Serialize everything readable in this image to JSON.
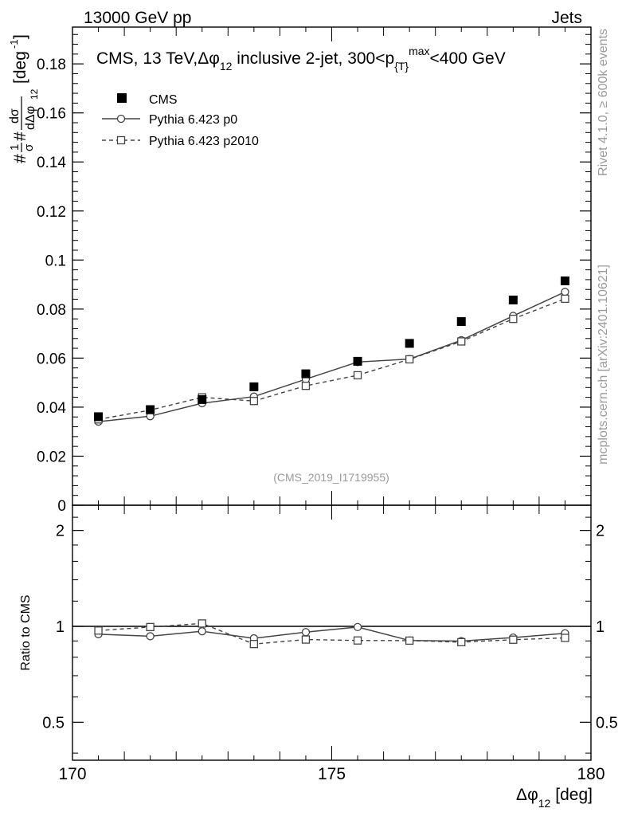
{
  "header": {
    "left": "13000 GeV pp",
    "right": "Jets"
  },
  "side": {
    "top": "Rivet 4.1.0, ≥ 600k events",
    "bottom": "mcplots.cern.ch [arXiv:2401.10621]"
  },
  "chart_data": {
    "type": "line",
    "title": "CMS, 13 TeV,Δφ",
    "title_parts": {
      "main": "CMS, 13 TeV,Δφ",
      "sub12": "12",
      "mid": " inclusive 2-jet, 300<p",
      "subT": "{T}",
      "sup": "max",
      "tail": "<400 GeV"
    },
    "ylabel": "#1/σ # dσ/dΔφ_12 [deg^-1]",
    "ylabel_parts": {
      "one": "1",
      "sigma": "σ",
      "hash": "#",
      "dsigma": "dσ",
      "dphi": "dΔφ",
      "sub12": "12",
      "unit": "[deg",
      "exp": "-1",
      "close": "]"
    },
    "xlabel": "Δφ_12 [deg]",
    "xlabel_parts": {
      "phi": "Δφ",
      "sub": "12",
      "unit": "[deg]"
    },
    "ratio_ylabel": "Ratio to CMS",
    "watermark": "(CMS_2019_I1719955)",
    "xlim": [
      170,
      180
    ],
    "ylim": [
      0,
      0.195
    ],
    "ratio_ylim": [
      0.38,
      2.4
    ],
    "x_ticks": [
      170,
      175,
      180
    ],
    "x_tick_labels": [
      "170",
      "175",
      "180"
    ],
    "y_ticks": [
      0,
      0.02,
      0.04,
      0.06,
      0.08,
      0.1,
      0.12,
      0.14,
      0.16,
      0.18
    ],
    "y_tick_labels": [
      "0",
      "0.02",
      "0.04",
      "0.06",
      "0.08",
      "0.1",
      "0.12",
      "0.14",
      "0.16",
      "0.18"
    ],
    "ratio_ticks": [
      0.5,
      1,
      2
    ],
    "ratio_tick_labels": [
      "0.5",
      "1",
      "2"
    ],
    "x": [
      170.5,
      171.5,
      172.5,
      173.5,
      174.5,
      175.5,
      176.5,
      177.5,
      178.5,
      179.5
    ],
    "series": [
      {
        "name": "CMS",
        "marker": "filled-square",
        "line": "none",
        "values": [
          0.0361,
          0.039,
          0.0431,
          0.0483,
          0.0536,
          0.0587,
          0.066,
          0.0749,
          0.0837,
          0.0915
        ]
      },
      {
        "name": "Pythia 6.423 p0",
        "marker": "open-circle",
        "line": "solid",
        "values": [
          0.0341,
          0.0363,
          0.0416,
          0.0443,
          0.0514,
          0.0584,
          0.0596,
          0.0673,
          0.0772,
          0.087
        ]
      },
      {
        "name": "Pythia 6.423 p2010",
        "marker": "open-square",
        "line": "dashed",
        "values": [
          0.035,
          0.0388,
          0.044,
          0.0425,
          0.0487,
          0.053,
          0.0595,
          0.0668,
          0.076,
          0.0842
        ]
      }
    ],
    "ratio_series": [
      {
        "name": "Pythia 6.423 p0",
        "values": [
          0.945,
          0.931,
          0.965,
          0.917,
          0.959,
          0.995,
          0.903,
          0.899,
          0.922,
          0.951
        ]
      },
      {
        "name": "Pythia 6.423 p2010",
        "values": [
          0.97,
          0.995,
          1.021,
          0.88,
          0.909,
          0.903,
          0.902,
          0.892,
          0.908,
          0.92
        ]
      }
    ],
    "legend_position": "top-left"
  }
}
